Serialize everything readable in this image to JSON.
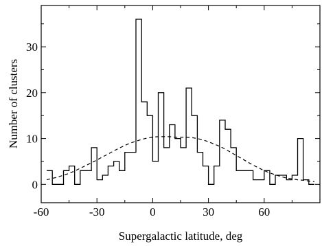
{
  "chart_data": {
    "type": "histogram",
    "xlabel": "Supergalactic latitude, deg",
    "ylabel": "Number of clusters",
    "xlim": [
      -60,
      90
    ],
    "ylim": [
      -4,
      39
    ],
    "x_ticks": [
      -60,
      -30,
      0,
      30,
      60
    ],
    "y_ticks": [
      0,
      10,
      20,
      30
    ],
    "grid": false,
    "legend": "none",
    "series": [
      {
        "style": "solid-step",
        "bin_width": 3,
        "bins": [
          {
            "x_start": -57,
            "x_end": -54,
            "value": 3
          },
          {
            "x_start": -54,
            "x_end": -51,
            "value": 0
          },
          {
            "x_start": -51,
            "x_end": -48,
            "value": 0
          },
          {
            "x_start": -48,
            "x_end": -45,
            "value": 3
          },
          {
            "x_start": -45,
            "x_end": -42,
            "value": 4
          },
          {
            "x_start": -42,
            "x_end": -39,
            "value": 0
          },
          {
            "x_start": -39,
            "x_end": -36,
            "value": 3
          },
          {
            "x_start": -36,
            "x_end": -33,
            "value": 3
          },
          {
            "x_start": -33,
            "x_end": -30,
            "value": 8
          },
          {
            "x_start": -30,
            "x_end": -27,
            "value": 1
          },
          {
            "x_start": -27,
            "x_end": -24,
            "value": 2
          },
          {
            "x_start": -24,
            "x_end": -21,
            "value": 4
          },
          {
            "x_start": -21,
            "x_end": -18,
            "value": 5
          },
          {
            "x_start": -18,
            "x_end": -15,
            "value": 3
          },
          {
            "x_start": -15,
            "x_end": -12,
            "value": 7
          },
          {
            "x_start": -12,
            "x_end": -9,
            "value": 7
          },
          {
            "x_start": -9,
            "x_end": -6,
            "value": 36
          },
          {
            "x_start": -6,
            "x_end": -3,
            "value": 18
          },
          {
            "x_start": -3,
            "x_end": 0,
            "value": 15
          },
          {
            "x_start": 0,
            "x_end": 3,
            "value": 5
          },
          {
            "x_start": 3,
            "x_end": 6,
            "value": 20
          },
          {
            "x_start": 6,
            "x_end": 9,
            "value": 8
          },
          {
            "x_start": 9,
            "x_end": 12,
            "value": 13
          },
          {
            "x_start": 12,
            "x_end": 15,
            "value": 10
          },
          {
            "x_start": 15,
            "x_end": 18,
            "value": 8
          },
          {
            "x_start": 18,
            "x_end": 21,
            "value": 21
          },
          {
            "x_start": 21,
            "x_end": 24,
            "value": 15
          },
          {
            "x_start": 24,
            "x_end": 27,
            "value": 7
          },
          {
            "x_start": 27,
            "x_end": 30,
            "value": 4
          },
          {
            "x_start": 30,
            "x_end": 33,
            "value": 0
          },
          {
            "x_start": 33,
            "x_end": 36,
            "value": 4
          },
          {
            "x_start": 36,
            "x_end": 39,
            "value": 14
          },
          {
            "x_start": 39,
            "x_end": 42,
            "value": 12
          },
          {
            "x_start": 42,
            "x_end": 45,
            "value": 8
          },
          {
            "x_start": 45,
            "x_end": 48,
            "value": 3
          },
          {
            "x_start": 48,
            "x_end": 51,
            "value": 3
          },
          {
            "x_start": 51,
            "x_end": 54,
            "value": 3
          },
          {
            "x_start": 54,
            "x_end": 57,
            "value": 1
          },
          {
            "x_start": 57,
            "x_end": 60,
            "value": 1
          },
          {
            "x_start": 60,
            "x_end": 63,
            "value": 3
          },
          {
            "x_start": 63,
            "x_end": 66,
            "value": 0
          },
          {
            "x_start": 66,
            "x_end": 69,
            "value": 2
          },
          {
            "x_start": 69,
            "x_end": 72,
            "value": 2
          },
          {
            "x_start": 72,
            "x_end": 75,
            "value": 1
          },
          {
            "x_start": 75,
            "x_end": 78,
            "value": 2
          },
          {
            "x_start": 78,
            "x_end": 81,
            "value": 10
          },
          {
            "x_start": 81,
            "x_end": 84,
            "value": 1
          },
          {
            "x_start": 84,
            "x_end": 87,
            "value": 0
          }
        ]
      },
      {
        "style": "dashed-curve",
        "fit": "gaussian",
        "x": [
          -57,
          -54,
          -51,
          -48,
          -45,
          -42,
          -39,
          -36,
          -33,
          -30,
          -27,
          -24,
          -21,
          -18,
          -15,
          -12,
          -9,
          -6,
          -3,
          0,
          3,
          6,
          9,
          12,
          15,
          18,
          21,
          24,
          27,
          30,
          33,
          36,
          39,
          42,
          45,
          48,
          51,
          54,
          57,
          60,
          63,
          66,
          69,
          72,
          75,
          78,
          81,
          84,
          87
        ],
        "y": [
          1.0,
          1.3,
          1.6,
          2.0,
          2.4,
          2.9,
          3.5,
          4.1,
          4.7,
          5.3,
          6.0,
          6.6,
          7.3,
          7.9,
          8.5,
          9.0,
          9.4,
          9.8,
          10.1,
          10.3,
          10.4,
          10.4,
          10.4,
          10.3,
          10.3,
          10.3,
          10.2,
          10.0,
          9.7,
          9.3,
          8.8,
          8.3,
          7.7,
          7.0,
          6.3,
          5.6,
          4.9,
          4.2,
          3.6,
          3.0,
          2.5,
          2.1,
          1.7,
          1.4,
          1.2,
          1.0,
          0.9,
          0.7,
          0.6
        ]
      }
    ]
  }
}
